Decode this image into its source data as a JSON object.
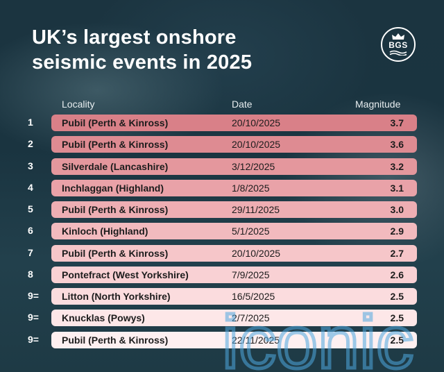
{
  "title": {
    "line1": "UK’s largest onshore",
    "line2": "seismic events in 2025"
  },
  "logo": {
    "text": "BGS"
  },
  "columns": {
    "locality": "Locality",
    "date": "Date",
    "magnitude": "Magnitude"
  },
  "rows": [
    {
      "rank": "1",
      "locality": "Pubil (Perth & Kinross)",
      "date": "20/10/2025",
      "magnitude": "3.7",
      "color": "#d98088"
    },
    {
      "rank": "2",
      "locality": "Pubil (Perth & Kinross)",
      "date": "20/10/2025",
      "magnitude": "3.6",
      "color": "#de8b92"
    },
    {
      "rank": "3",
      "locality": "Silverdale (Lancashire)",
      "date": "3/12/2025",
      "magnitude": "3.2",
      "color": "#e4979d"
    },
    {
      "rank": "4",
      "locality": "Inchlaggan (Highland)",
      "date": "1/8/2025",
      "magnitude": "3.1",
      "color": "#e9a2a8"
    },
    {
      "rank": "5",
      "locality": "Pubil (Perth & Kinross)",
      "date": "29/11/2025",
      "magnitude": "3.0",
      "color": "#eeaeb3"
    },
    {
      "rank": "6",
      "locality": "Kinloch (Highland)",
      "date": "5/1/2025",
      "magnitude": "2.9",
      "color": "#f2babe"
    },
    {
      "rank": "7",
      "locality": "Pubil (Perth & Kinross)",
      "date": "20/10/2025",
      "magnitude": "2.7",
      "color": "#f6c6c9"
    },
    {
      "rank": "8",
      "locality": "Pontefract (West Yorkshire)",
      "date": "7/9/2025",
      "magnitude": "2.6",
      "color": "#f9d1d4"
    },
    {
      "rank": "9=",
      "locality": "Litton (North Yorkshire)",
      "date": "16/5/2025",
      "magnitude": "2.5",
      "color": "#fbdcde"
    },
    {
      "rank": "9=",
      "locality": "Knucklas (Powys)",
      "date": "2/7/2025",
      "magnitude": "2.5",
      "color": "#fde7e8"
    },
    {
      "rank": "9=",
      "locality": "Pubil (Perth & Kinross)",
      "date": "22/11/2025",
      "magnitude": "2.5",
      "color": "#fef0f1"
    }
  ],
  "watermark": {
    "text": "iconic",
    "color": "#4fa8e0"
  }
}
